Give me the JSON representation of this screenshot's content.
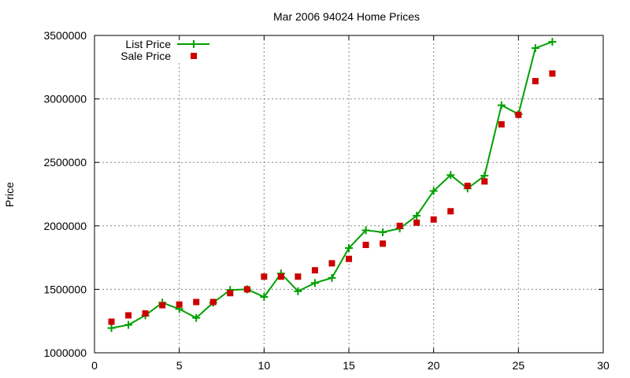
{
  "chart_data": {
    "type": "line",
    "title": "Mar 2006 94024 Home Prices",
    "xlabel": "",
    "ylabel": "Price",
    "xlim": [
      0,
      30
    ],
    "ylim": [
      1000000,
      3500000
    ],
    "x_ticks": [
      "0",
      "5",
      "10",
      "15",
      "20",
      "25",
      "30"
    ],
    "y_ticks": [
      "1000000",
      "1500000",
      "2000000",
      "2500000",
      "3000000",
      "3500000"
    ],
    "grid": true,
    "legend_position": "top-left",
    "series": [
      {
        "name": "List Price",
        "style": "lines+points",
        "color": "#00a000",
        "x": [
          1,
          2,
          3,
          4,
          5,
          6,
          7,
          8,
          9,
          10,
          11,
          12,
          13,
          14,
          15,
          16,
          17,
          18,
          19,
          20,
          21,
          22,
          23,
          24,
          25,
          26,
          27
        ],
        "y": [
          1195000,
          1220000,
          1295000,
          1395000,
          1345000,
          1275000,
          1395000,
          1495000,
          1500000,
          1440000,
          1625000,
          1485000,
          1550000,
          1590000,
          1825000,
          1965000,
          1950000,
          1980000,
          2080000,
          2275000,
          2400000,
          2295000,
          2395000,
          2950000,
          2880000,
          3400000,
          3450000
        ]
      },
      {
        "name": "Sale Price",
        "style": "points",
        "color": "#cc0000",
        "x": [
          1,
          2,
          3,
          4,
          5,
          6,
          7,
          8,
          9,
          10,
          11,
          12,
          13,
          14,
          15,
          16,
          17,
          18,
          19,
          20,
          21,
          22,
          23,
          24,
          25,
          26,
          27
        ],
        "y": [
          1245000,
          1295000,
          1310000,
          1375000,
          1380000,
          1400000,
          1400000,
          1470000,
          1500000,
          1600000,
          1600000,
          1600000,
          1650000,
          1705000,
          1740000,
          1850000,
          1860000,
          2000000,
          2025000,
          2050000,
          2115000,
          2315000,
          2350000,
          2800000,
          2875000,
          3140000,
          3200000
        ]
      }
    ]
  }
}
